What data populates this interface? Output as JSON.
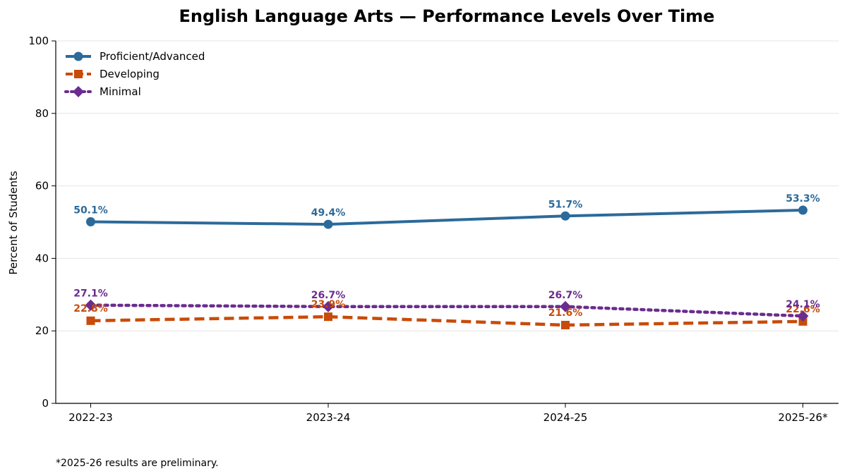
{
  "footnote": "*2025-26 results are preliminary.",
  "chart_data": {
    "type": "line",
    "title": "English Language Arts — Performance Levels Over Time",
    "xlabel": "",
    "ylabel": "Percent of Students",
    "categories": [
      "2022-23",
      "2023-24",
      "2024-25",
      "2025-26*"
    ],
    "ylim": [
      0,
      100
    ],
    "yticks": [
      0,
      20,
      40,
      60,
      80,
      100
    ],
    "grid": "horizontal",
    "legend_position": "top-left",
    "series": [
      {
        "name": "Proficient/Advanced",
        "values": [
          50.1,
          49.4,
          51.7,
          53.3
        ],
        "labels": [
          "50.1%",
          "49.4%",
          "51.7%",
          "53.3%"
        ],
        "color": "#2c6a9a",
        "line_style": "solid",
        "marker": "circle"
      },
      {
        "name": "Developing",
        "values": [
          22.8,
          23.9,
          21.6,
          22.6
        ],
        "labels": [
          "22.8%",
          "23.9%",
          "21.6%",
          "22.6%"
        ],
        "color": "#c84b09",
        "line_style": "dashed",
        "marker": "square"
      },
      {
        "name": "Minimal",
        "values": [
          27.1,
          26.7,
          26.7,
          24.1
        ],
        "labels": [
          "27.1%",
          "26.7%",
          "26.7%",
          "24.1%"
        ],
        "color": "#6a2c8e",
        "line_style": "dotted",
        "marker": "diamond"
      }
    ]
  }
}
